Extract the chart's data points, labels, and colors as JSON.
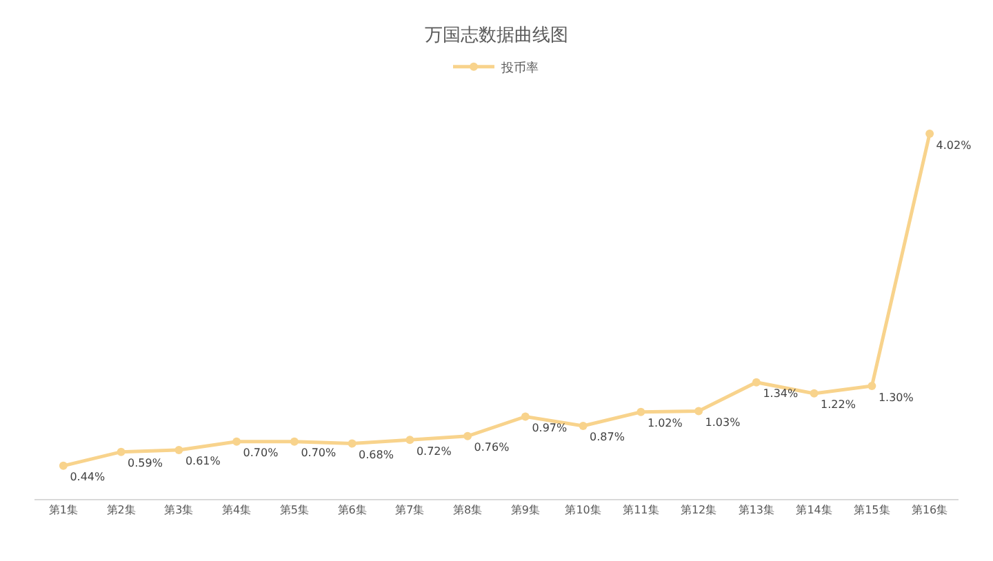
{
  "chart_data": {
    "type": "line",
    "title": "万国志数据曲线图",
    "categories": [
      "第1集",
      "第2集",
      "第3集",
      "第4集",
      "第5集",
      "第6集",
      "第7集",
      "第8集",
      "第9集",
      "第10集",
      "第11集",
      "第12集",
      "第13集",
      "第14集",
      "第15集",
      "第16集"
    ],
    "series": [
      {
        "name": "投币率",
        "color": "#f8d38c",
        "values": [
          0.44,
          0.59,
          0.61,
          0.7,
          0.7,
          0.68,
          0.72,
          0.76,
          0.97,
          0.87,
          1.02,
          1.03,
          1.34,
          1.22,
          1.3,
          4.02
        ],
        "value_labels": [
          "0.44%",
          "0.59%",
          "0.61%",
          "0.70%",
          "0.70%",
          "0.68%",
          "0.72%",
          "0.76%",
          "0.97%",
          "0.87%",
          "1.02%",
          "1.03%",
          "1.34%",
          "1.22%",
          "1.30%",
          "4.02%"
        ]
      }
    ],
    "tick_labels": "x",
    "legend": "top",
    "marker": "circle",
    "line_style": "solid"
  }
}
